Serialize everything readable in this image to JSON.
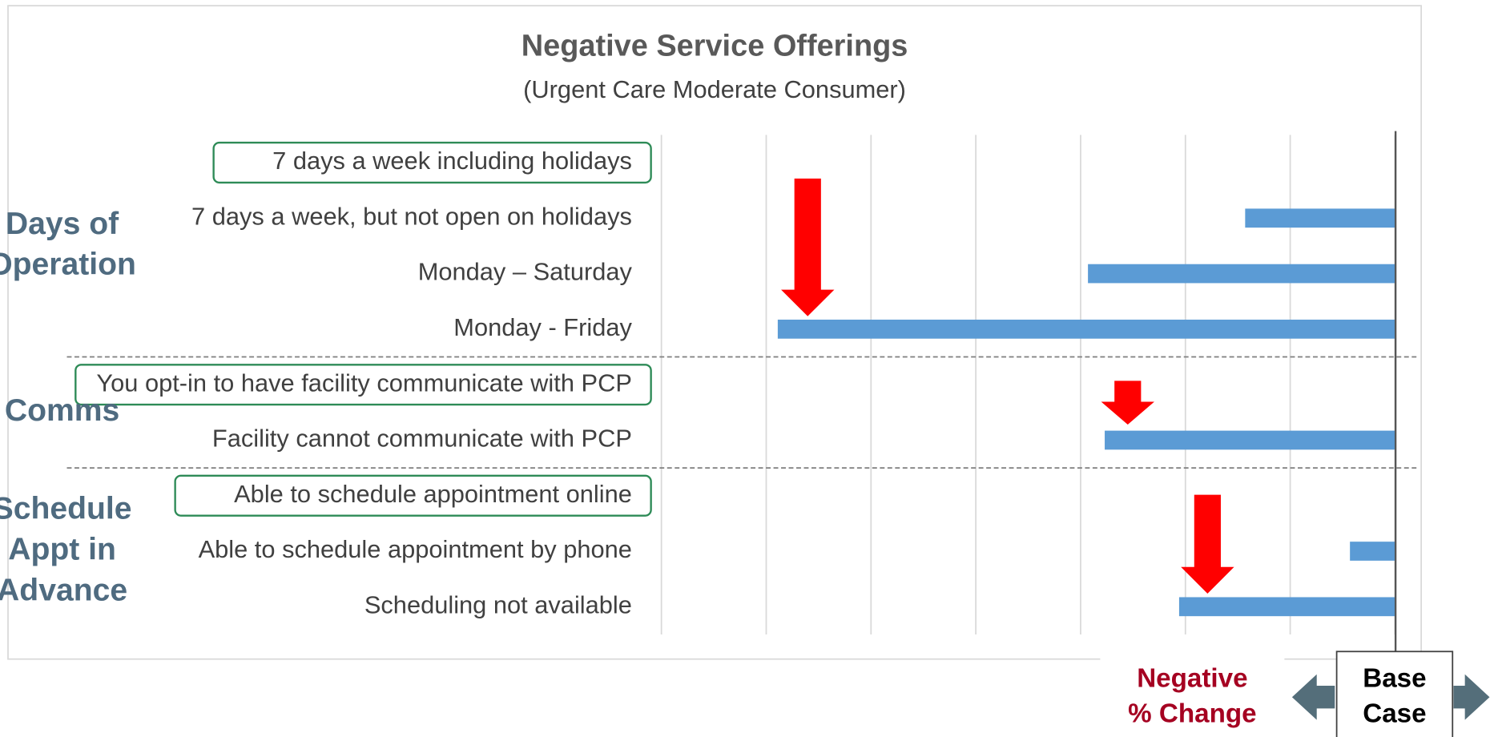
{
  "chart_data": {
    "type": "bar",
    "orientation": "horizontal",
    "title": "Negative Service Offerings",
    "subtitle": "(Urgent Care Moderate Consumer)",
    "categories": [
      "7 days a week including holidays",
      "7 days a week, but not open on holidays",
      "Monday – Saturday",
      "Monday - Friday",
      "You opt-in to have facility communicate with PCP",
      "Facility cannot communicate with PCP",
      "Able to schedule appointment online",
      "Able to schedule appointment by phone",
      "Scheduling not available"
    ],
    "values": [
      0,
      -1.43,
      -2.93,
      -5.89,
      0,
      -2.77,
      0,
      -0.43,
      -2.06
    ],
    "boxed": [
      true,
      false,
      false,
      false,
      true,
      false,
      true,
      false,
      false
    ],
    "color": "#5b9bd5",
    "groups": [
      {
        "label_lines": [
          "Days of",
          "Operation"
        ],
        "size": 4
      },
      {
        "label_lines": [
          "Comms"
        ],
        "size": 2
      },
      {
        "label_lines": [
          "Schedule",
          "Appt in",
          "Advance"
        ],
        "size": 3
      }
    ],
    "xlim": [
      -7,
      0.25
    ],
    "xticks": [
      -7,
      -6,
      -5,
      -4,
      -3,
      -2,
      -1,
      0
    ],
    "grid": true,
    "annotations": {
      "negative": [
        "Negative",
        "% Change"
      ],
      "base": [
        "Base",
        "Case"
      ]
    }
  }
}
